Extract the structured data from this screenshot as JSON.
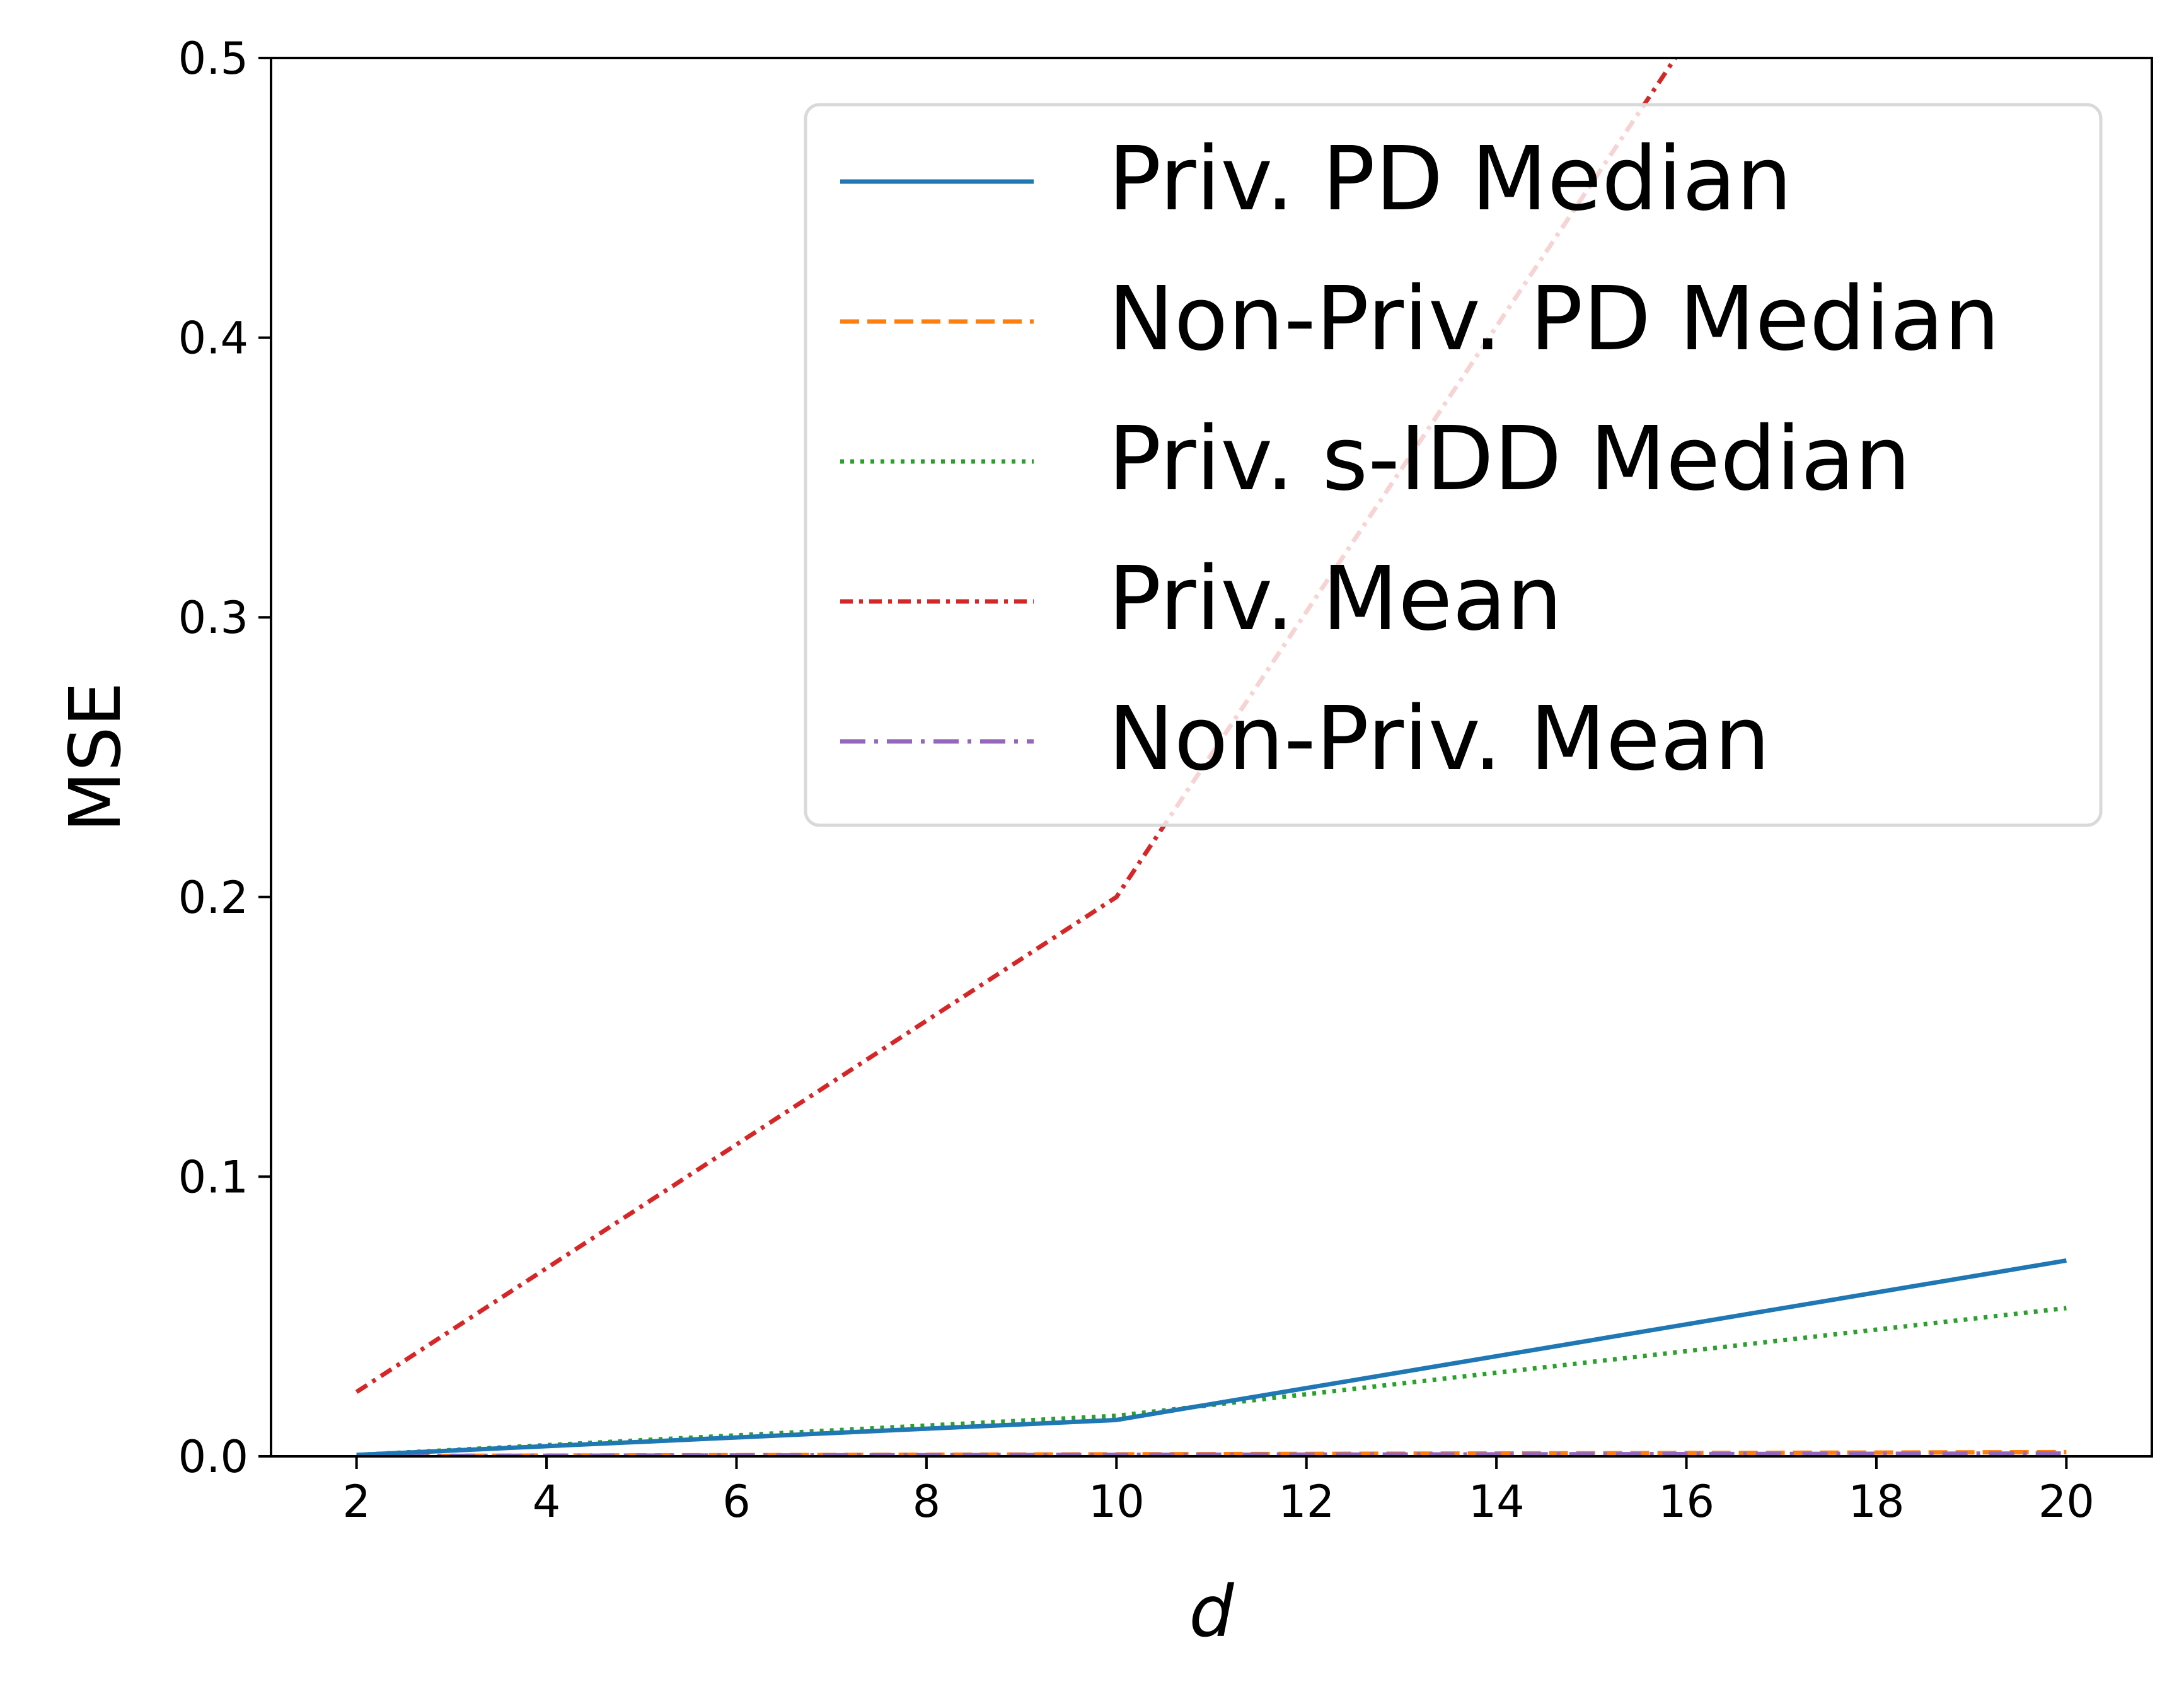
{
  "chart_data": {
    "type": "line",
    "title": "",
    "xlabel": "d",
    "ylabel": "MSE",
    "xlim": [
      1.1,
      20.9
    ],
    "ylim": [
      0.0,
      0.5
    ],
    "xticks": [
      2,
      4,
      6,
      8,
      10,
      12,
      14,
      16,
      18,
      20
    ],
    "xtick_labels": [
      "2",
      "4",
      "6",
      "8",
      "10",
      "12",
      "14",
      "16",
      "18",
      "20"
    ],
    "yticks": [
      0.0,
      0.1,
      0.2,
      0.3,
      0.4,
      0.5
    ],
    "ytick_labels": [
      "0.0",
      "0.1",
      "0.2",
      "0.3",
      "0.4",
      "0.5"
    ],
    "grid": false,
    "legend_position": "upper-right",
    "series": [
      {
        "name": "Priv. PD Median",
        "color": "#1f77b4",
        "linestyle": "solid",
        "x": [
          2,
          10,
          20
        ],
        "y": [
          0.0005,
          0.013,
          0.07
        ]
      },
      {
        "name": "Non-Priv. PD Median",
        "color": "#ff7f0e",
        "linestyle": "dashed",
        "x": [
          2,
          10,
          20
        ],
        "y": [
          0.0001,
          0.0007,
          0.0015
        ]
      },
      {
        "name": "Priv. s-IDD Median",
        "color": "#2ca02c",
        "linestyle": "dotted",
        "x": [
          2,
          10,
          20
        ],
        "y": [
          0.0005,
          0.0145,
          0.053
        ]
      },
      {
        "name": "Priv. Mean",
        "color": "#d62728",
        "linestyle": "densely-dashdotted",
        "x": [
          2,
          10,
          20
        ],
        "y": [
          0.023,
          0.2,
          0.71
        ]
      },
      {
        "name": "Non-Priv. Mean",
        "color": "#9467bd",
        "linestyle": "dashdot",
        "x": [
          2,
          10,
          20
        ],
        "y": [
          0.0001,
          0.0005,
          0.001
        ]
      }
    ]
  }
}
